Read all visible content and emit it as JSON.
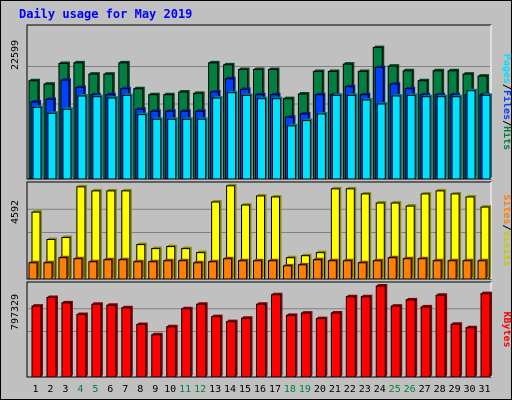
{
  "title": "Daily usage for May 2019",
  "colors": {
    "hits": "#008040",
    "files": "#0040ff",
    "pages": "#00e0ff",
    "visits": "#ffff00",
    "sites": "#ff8000",
    "kbytes": "#ff0000",
    "weekend_label": "#008040",
    "weekday_label": "#000000",
    "panel": "#c0c0c0",
    "gridline": "#808080"
  },
  "chart_data": [
    {
      "type": "bar",
      "panel": "hits_files_pages",
      "max_label": "22599",
      "right_label_parts": [
        "Pages",
        "/",
        "Files",
        "/",
        "Hits"
      ],
      "ylim": [
        0,
        22599
      ],
      "categories": [
        "1",
        "2",
        "3",
        "4",
        "5",
        "6",
        "7",
        "8",
        "9",
        "10",
        "11",
        "12",
        "13",
        "14",
        "15",
        "16",
        "17",
        "18",
        "19",
        "20",
        "21",
        "22",
        "23",
        "24",
        "25",
        "26",
        "27",
        "28",
        "29",
        "30",
        "31"
      ],
      "series": [
        {
          "name": "Hits",
          "values": [
            14800,
            14300,
            17400,
            17500,
            15800,
            15800,
            17500,
            13600,
            12700,
            12700,
            13100,
            12900,
            17500,
            17200,
            16500,
            16500,
            16500,
            12100,
            12800,
            16200,
            16200,
            17300,
            16200,
            19800,
            17000,
            16300,
            14800,
            16300,
            16300,
            15800,
            15500
          ]
        },
        {
          "name": "Files",
          "values": [
            11600,
            12000,
            14900,
            13800,
            12700,
            12700,
            13600,
            10500,
            10200,
            10200,
            10200,
            10200,
            13100,
            15100,
            13500,
            12700,
            12700,
            9300,
            9800,
            12700,
            12700,
            13900,
            12700,
            16800,
            14300,
            13600,
            12700,
            12700,
            12700,
            12700,
            12700
          ]
        },
        {
          "name": "Pages",
          "values": [
            10800,
            9900,
            10500,
            12500,
            12400,
            12200,
            12600,
            9700,
            9000,
            9000,
            9000,
            9000,
            12200,
            13000,
            12600,
            12100,
            12100,
            8000,
            8800,
            9800,
            12600,
            12600,
            11900,
            11300,
            12500,
            12600,
            12400,
            12400,
            12400,
            13300,
            12600
          ]
        }
      ]
    },
    {
      "type": "bar",
      "panel": "visits_sites",
      "max_label": "4592",
      "right_label_parts": [
        "Sites",
        "/",
        "Visits"
      ],
      "ylim": [
        0,
        4592
      ],
      "categories": [
        "1",
        "2",
        "3",
        "4",
        "5",
        "6",
        "7",
        "8",
        "9",
        "10",
        "11",
        "12",
        "13",
        "14",
        "15",
        "16",
        "17",
        "18",
        "19",
        "20",
        "21",
        "22",
        "23",
        "24",
        "25",
        "26",
        "27",
        "28",
        "29",
        "30",
        "31"
      ],
      "series": [
        {
          "name": "Visits",
          "values": [
            3300,
            1950,
            2050,
            4550,
            4350,
            4350,
            4350,
            1700,
            1500,
            1600,
            1500,
            1300,
            3800,
            4600,
            3650,
            4100,
            4050,
            1050,
            1150,
            1300,
            4450,
            4450,
            4200,
            3750,
            3750,
            3600,
            4200,
            4350,
            4200,
            4050,
            3550
          ]
        },
        {
          "name": "Sites",
          "values": [
            800,
            800,
            1050,
            1000,
            850,
            950,
            950,
            850,
            850,
            900,
            900,
            800,
            850,
            1000,
            900,
            900,
            900,
            650,
            700,
            950,
            900,
            900,
            800,
            900,
            1050,
            1000,
            1000,
            900,
            900,
            900,
            900
          ]
        }
      ]
    },
    {
      "type": "bar",
      "panel": "kbytes",
      "max_label": "797329",
      "right_label_parts": [
        "KBytes"
      ],
      "ylim": [
        0,
        797329
      ],
      "categories": [
        "1",
        "2",
        "3",
        "4",
        "5",
        "6",
        "7",
        "8",
        "9",
        "10",
        "11",
        "12",
        "13",
        "14",
        "15",
        "16",
        "17",
        "18",
        "19",
        "20",
        "21",
        "22",
        "23",
        "24",
        "25",
        "26",
        "27",
        "28",
        "29",
        "30",
        "31"
      ],
      "series": [
        {
          "name": "KBytes",
          "values": [
            621000,
            697000,
            650000,
            548000,
            637000,
            629000,
            607000,
            460000,
            370000,
            440000,
            598000,
            637000,
            529000,
            485000,
            515000,
            637000,
            721000,
            540000,
            560000,
            512000,
            561000,
            703000,
            703000,
            797000,
            621000,
            676000,
            614000,
            716000,
            462000,
            432000,
            730000
          ]
        }
      ]
    }
  ],
  "days": [
    {
      "label": "1",
      "weekend": false
    },
    {
      "label": "2",
      "weekend": false
    },
    {
      "label": "3",
      "weekend": false
    },
    {
      "label": "4",
      "weekend": true
    },
    {
      "label": "5",
      "weekend": true
    },
    {
      "label": "6",
      "weekend": false
    },
    {
      "label": "7",
      "weekend": false
    },
    {
      "label": "8",
      "weekend": false
    },
    {
      "label": "9",
      "weekend": false
    },
    {
      "label": "10",
      "weekend": false
    },
    {
      "label": "11",
      "weekend": true
    },
    {
      "label": "12",
      "weekend": true
    },
    {
      "label": "13",
      "weekend": false
    },
    {
      "label": "14",
      "weekend": false
    },
    {
      "label": "15",
      "weekend": false
    },
    {
      "label": "16",
      "weekend": false
    },
    {
      "label": "17",
      "weekend": false
    },
    {
      "label": "18",
      "weekend": true
    },
    {
      "label": "19",
      "weekend": true
    },
    {
      "label": "20",
      "weekend": false
    },
    {
      "label": "21",
      "weekend": false
    },
    {
      "label": "22",
      "weekend": false
    },
    {
      "label": "23",
      "weekend": false
    },
    {
      "label": "24",
      "weekend": false
    },
    {
      "label": "25",
      "weekend": true
    },
    {
      "label": "26",
      "weekend": true
    },
    {
      "label": "27",
      "weekend": false
    },
    {
      "label": "28",
      "weekend": false
    },
    {
      "label": "29",
      "weekend": false
    },
    {
      "label": "30",
      "weekend": false
    },
    {
      "label": "31",
      "weekend": false
    }
  ]
}
